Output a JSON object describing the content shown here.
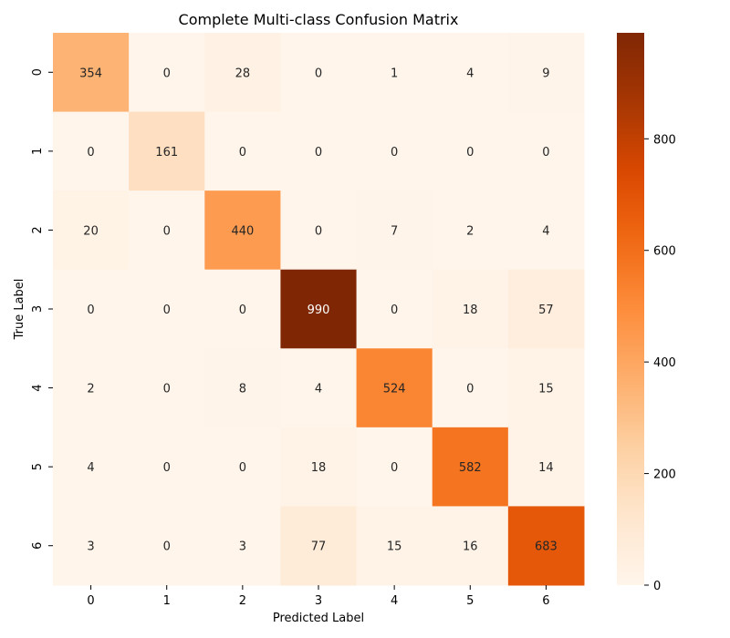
{
  "chart_data": {
    "type": "heatmap",
    "title": "Complete Multi-class Confusion Matrix",
    "xlabel": "Predicted Label",
    "ylabel": "True Label",
    "x_categories": [
      "0",
      "1",
      "2",
      "3",
      "4",
      "5",
      "6"
    ],
    "y_categories": [
      "0",
      "1",
      "2",
      "3",
      "4",
      "5",
      "6"
    ],
    "values": [
      [
        354,
        0,
        28,
        0,
        1,
        4,
        9
      ],
      [
        0,
        161,
        0,
        0,
        0,
        0,
        0
      ],
      [
        20,
        0,
        440,
        0,
        7,
        2,
        4
      ],
      [
        0,
        0,
        0,
        990,
        0,
        18,
        57
      ],
      [
        2,
        0,
        8,
        4,
        524,
        0,
        15
      ],
      [
        4,
        0,
        0,
        18,
        0,
        582,
        14
      ],
      [
        3,
        0,
        3,
        77,
        15,
        16,
        683
      ]
    ],
    "colormap": "Oranges",
    "color_range": [
      0,
      990
    ],
    "colorbar_ticks": [
      0,
      200,
      400,
      600,
      800
    ],
    "grid": false
  }
}
